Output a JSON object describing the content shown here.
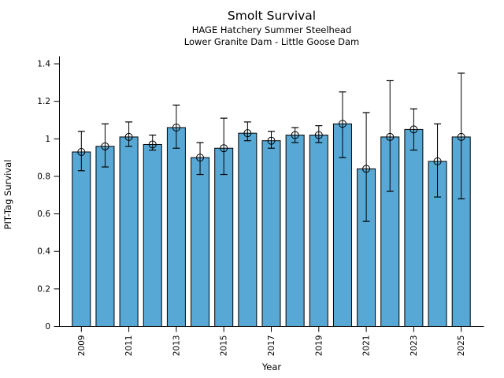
{
  "chart_data": {
    "type": "bar",
    "title": "Smolt Survival",
    "subtitle1": "HAGE Hatchery Summer Steelhead",
    "subtitle2": "Lower Granite Dam - Little Goose Dam",
    "xlabel": "Year",
    "ylabel": "PIT-Tag Survival",
    "categories": [
      "2009",
      "2010",
      "2011",
      "2012",
      "2013",
      "2014",
      "2015",
      "2016",
      "2017",
      "2018",
      "2019",
      "2020",
      "2021",
      "2022",
      "2023",
      "2024",
      "2025"
    ],
    "values": [
      0.93,
      0.96,
      1.01,
      0.97,
      1.06,
      0.9,
      0.95,
      1.03,
      0.99,
      1.02,
      1.02,
      1.08,
      0.84,
      1.01,
      1.05,
      0.88,
      1.01
    ],
    "error_low": [
      0.83,
      0.85,
      0.96,
      0.94,
      0.95,
      0.81,
      0.81,
      0.99,
      0.95,
      0.98,
      0.98,
      0.9,
      0.56,
      0.72,
      0.94,
      0.69,
      0.68
    ],
    "error_high": [
      1.04,
      1.08,
      1.09,
      1.02,
      1.18,
      0.98,
      1.11,
      1.09,
      1.04,
      1.06,
      1.07,
      1.25,
      1.14,
      1.31,
      1.16,
      1.08,
      1.35
    ],
    "ylim": [
      0,
      1.44
    ],
    "yticks": [
      0,
      0.2,
      0.4,
      0.6,
      0.8,
      1.0,
      1.2,
      1.4
    ],
    "ytick_labels": [
      "0",
      "0.2",
      "0.4",
      "0.6",
      "0.8",
      "1",
      "1.2",
      "1.4"
    ],
    "xtick_labels": [
      "2009",
      "2011",
      "2013",
      "2015",
      "2017",
      "2019",
      "2021",
      "2023",
      "2025"
    ],
    "xtick_label_rotation_deg": 90,
    "grid": false,
    "legend": false,
    "bar_color": "#58a8d6",
    "bar_edge_color": "#000000",
    "error_color": "#000000",
    "marker": "open-circle",
    "marker_edge_color": "#000000"
  }
}
